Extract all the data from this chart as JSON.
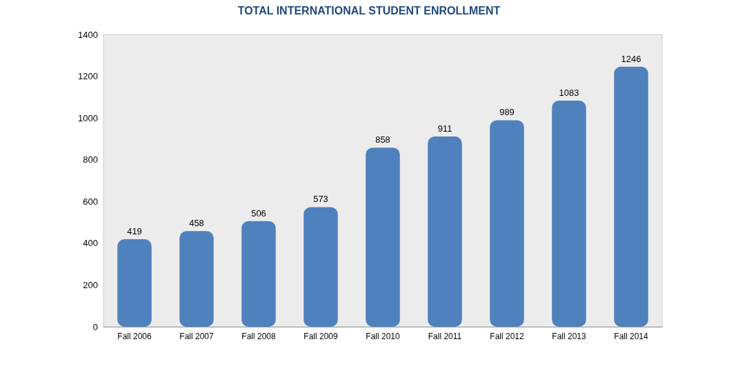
{
  "chart_data": {
    "type": "bar",
    "title": "TOTAL INTERNATIONAL STUDENT ENROLLMENT",
    "categories": [
      "Fall 2006",
      "Fall 2007",
      "Fall 2008",
      "Fall 2009",
      "Fall 2010",
      "Fall 2011",
      "Fall 2012",
      "Fall 2013",
      "Fall 2014"
    ],
    "values": [
      419,
      458,
      506,
      573,
      858,
      911,
      989,
      1083,
      1246
    ],
    "color": "#4f81bd",
    "ylim": [
      0,
      1400
    ],
    "yticks": [
      0,
      200,
      400,
      600,
      800,
      1000,
      1200,
      1400
    ],
    "grid": false,
    "data_labels": true
  }
}
